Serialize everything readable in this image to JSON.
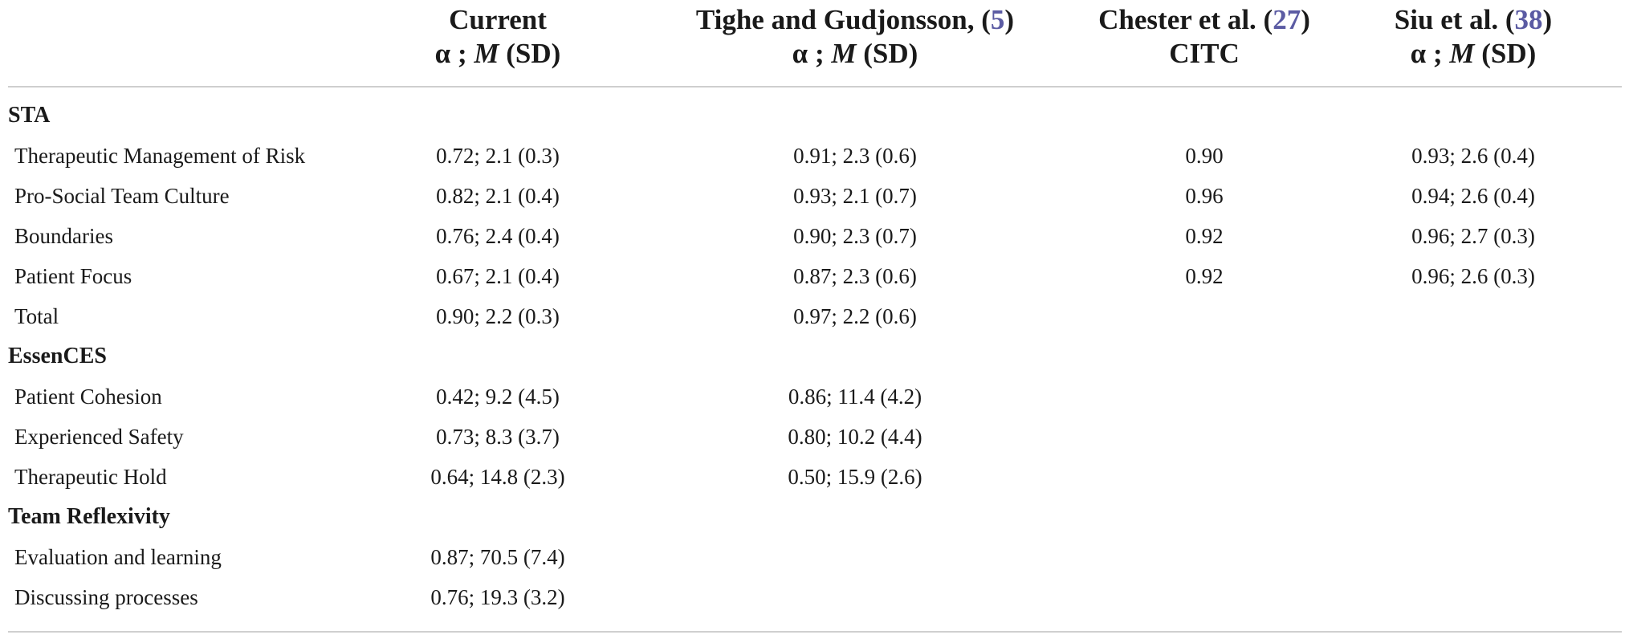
{
  "header": {
    "col1": {
      "line1": "Current",
      "line2_alpha": "α ; ",
      "line2_m": "M",
      "line2_sd": " (SD)"
    },
    "col2": {
      "line1_text": "Tighe and Gudjonsson, (",
      "line1_ref": "5",
      "line1_close": ")",
      "line2_alpha": "α ; ",
      "line2_m": "M",
      "line2_sd": " (SD)"
    },
    "col3": {
      "line1_text": "Chester et al. (",
      "line1_ref": "27",
      "line1_close": ")",
      "line2": "CITC"
    },
    "col4": {
      "line1_text": "Siu et al. (",
      "line1_ref": "38",
      "line1_close": ")",
      "line2_alpha": "α ; ",
      "line2_m": "M",
      "line2_sd": " (SD)"
    }
  },
  "rows": [
    {
      "type": "section",
      "label": "STA"
    },
    {
      "type": "data",
      "label": "Therapeutic Management of Risk",
      "c1": "0.72; 2.1 (0.3)",
      "c2": "0.91; 2.3 (0.6)",
      "c3": "0.90",
      "c4": "0.93; 2.6 (0.4)"
    },
    {
      "type": "data",
      "label": "Pro-Social Team Culture",
      "c1": "0.82; 2.1 (0.4)",
      "c2": "0.93; 2.1 (0.7)",
      "c3": "0.96",
      "c4": "0.94; 2.6 (0.4)"
    },
    {
      "type": "data",
      "label": "Boundaries",
      "c1": "0.76; 2.4 (0.4)",
      "c2": "0.90; 2.3 (0.7)",
      "c3": "0.92",
      "c4": "0.96; 2.7 (0.3)"
    },
    {
      "type": "data",
      "label": "Patient Focus",
      "c1": "0.67; 2.1 (0.4)",
      "c2": "0.87; 2.3 (0.6)",
      "c3": "0.92",
      "c4": "0.96; 2.6 (0.3)"
    },
    {
      "type": "data",
      "label": "Total",
      "c1": "0.90; 2.2 (0.3)",
      "c2": "0.97; 2.2 (0.6)",
      "c3": "",
      "c4": ""
    },
    {
      "type": "section",
      "label": "EssenCES"
    },
    {
      "type": "data",
      "label": "Patient Cohesion",
      "c1": "0.42; 9.2 (4.5)",
      "c2": "0.86; 11.4 (4.2)",
      "c3": "",
      "c4": ""
    },
    {
      "type": "data",
      "label": "Experienced Safety",
      "c1": "0.73; 8.3 (3.7)",
      "c2": "0.80; 10.2 (4.4)",
      "c3": "",
      "c4": ""
    },
    {
      "type": "data",
      "label": "Therapeutic Hold",
      "c1": "0.64; 14.8 (2.3)",
      "c2": "0.50; 15.9 (2.6)",
      "c3": "",
      "c4": ""
    },
    {
      "type": "section",
      "label": "Team Reflexivity"
    },
    {
      "type": "data",
      "label": "Evaluation and learning",
      "c1": "0.87; 70.5 (7.4)",
      "c2": "",
      "c3": "",
      "c4": ""
    },
    {
      "type": "data",
      "label": "Discussing processes",
      "c1": "0.76; 19.3 (3.2)",
      "c2": "",
      "c3": "",
      "c4": ""
    }
  ],
  "colors": {
    "reference_link": "#5b5ba3",
    "rule": "#cfcfcf",
    "text": "#1a1a1a"
  }
}
